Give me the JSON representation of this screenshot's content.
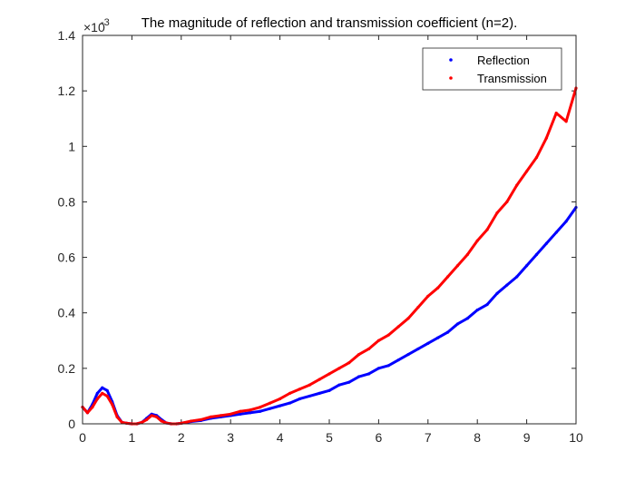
{
  "chart_data": {
    "type": "line",
    "title": "The magnitude of reflection and transmission coefficient (n=2).",
    "xlabel": "",
    "ylabel": "",
    "y_exponent_label": "×10",
    "y_exponent_power": "-3",
    "xlim": [
      0,
      10
    ],
    "ylim": [
      0,
      1.4
    ],
    "xticks": [
      0,
      1,
      2,
      3,
      4,
      5,
      6,
      7,
      8,
      9,
      10
    ],
    "xtick_labels": [
      "0",
      "1",
      "2",
      "3",
      "4",
      "5",
      "6",
      "7",
      "8",
      "9",
      "10"
    ],
    "yticks": [
      0,
      0.2,
      0.4,
      0.6,
      0.8,
      1.0,
      1.2,
      1.4
    ],
    "ytick_labels": [
      "0",
      "0.2",
      "0.4",
      "0.6",
      "0.8",
      "1",
      "1.2",
      "1.4"
    ],
    "grid": false,
    "legend_position": "top-right",
    "series": [
      {
        "name": "Reflection",
        "color": "#0000ff",
        "marker": "dot",
        "x": [
          0,
          0.1,
          0.2,
          0.3,
          0.4,
          0.5,
          0.6,
          0.7,
          0.8,
          0.9,
          1.0,
          1.1,
          1.2,
          1.3,
          1.4,
          1.5,
          1.6,
          1.7,
          1.8,
          1.9,
          2.0,
          2.2,
          2.4,
          2.6,
          2.8,
          3.0,
          3.2,
          3.4,
          3.6,
          3.8,
          4.0,
          4.2,
          4.4,
          4.6,
          4.8,
          5.0,
          5.2,
          5.4,
          5.6,
          5.8,
          6.0,
          6.2,
          6.4,
          6.6,
          6.8,
          7.0,
          7.2,
          7.4,
          7.6,
          7.8,
          8.0,
          8.2,
          8.4,
          8.6,
          8.8,
          9.0,
          9.2,
          9.4,
          9.6,
          9.8,
          10.0
        ],
        "y": [
          0.06,
          0.04,
          0.07,
          0.11,
          0.13,
          0.12,
          0.08,
          0.03,
          0.005,
          0.002,
          0.0,
          0.0,
          0.005,
          0.02,
          0.035,
          0.03,
          0.015,
          0.003,
          0.0,
          0.0,
          0.002,
          0.008,
          0.012,
          0.02,
          0.025,
          0.03,
          0.035,
          0.04,
          0.045,
          0.055,
          0.065,
          0.075,
          0.09,
          0.1,
          0.11,
          0.12,
          0.14,
          0.15,
          0.17,
          0.18,
          0.2,
          0.21,
          0.23,
          0.25,
          0.27,
          0.29,
          0.31,
          0.33,
          0.36,
          0.38,
          0.41,
          0.43,
          0.47,
          0.5,
          0.53,
          0.57,
          0.61,
          0.65,
          0.69,
          0.73,
          0.78
        ]
      },
      {
        "name": "Transmission",
        "color": "#ff0000",
        "marker": "dot",
        "x": [
          0,
          0.1,
          0.2,
          0.3,
          0.4,
          0.5,
          0.6,
          0.7,
          0.8,
          0.9,
          1.0,
          1.1,
          1.2,
          1.3,
          1.4,
          1.5,
          1.6,
          1.7,
          1.8,
          1.9,
          2.0,
          2.2,
          2.4,
          2.6,
          2.8,
          3.0,
          3.2,
          3.4,
          3.6,
          3.8,
          4.0,
          4.2,
          4.4,
          4.6,
          4.8,
          5.0,
          5.2,
          5.4,
          5.6,
          5.8,
          6.0,
          6.2,
          6.4,
          6.6,
          6.8,
          7.0,
          7.2,
          7.4,
          7.6,
          7.8,
          8.0,
          8.2,
          8.4,
          8.6,
          8.8,
          9.0,
          9.2,
          9.4,
          9.6,
          9.8,
          10.0
        ],
        "y": [
          0.06,
          0.04,
          0.06,
          0.09,
          0.11,
          0.1,
          0.07,
          0.025,
          0.005,
          0.002,
          0.0,
          0.0,
          0.005,
          0.015,
          0.03,
          0.025,
          0.01,
          0.003,
          0.0,
          0.0,
          0.002,
          0.01,
          0.015,
          0.025,
          0.03,
          0.035,
          0.045,
          0.05,
          0.06,
          0.075,
          0.09,
          0.11,
          0.125,
          0.14,
          0.16,
          0.18,
          0.2,
          0.22,
          0.25,
          0.27,
          0.3,
          0.32,
          0.35,
          0.38,
          0.42,
          0.46,
          0.49,
          0.53,
          0.57,
          0.61,
          0.66,
          0.7,
          0.76,
          0.8,
          0.86,
          0.91,
          0.96,
          1.03,
          1.12,
          1.09,
          1.21
        ]
      }
    ]
  }
}
